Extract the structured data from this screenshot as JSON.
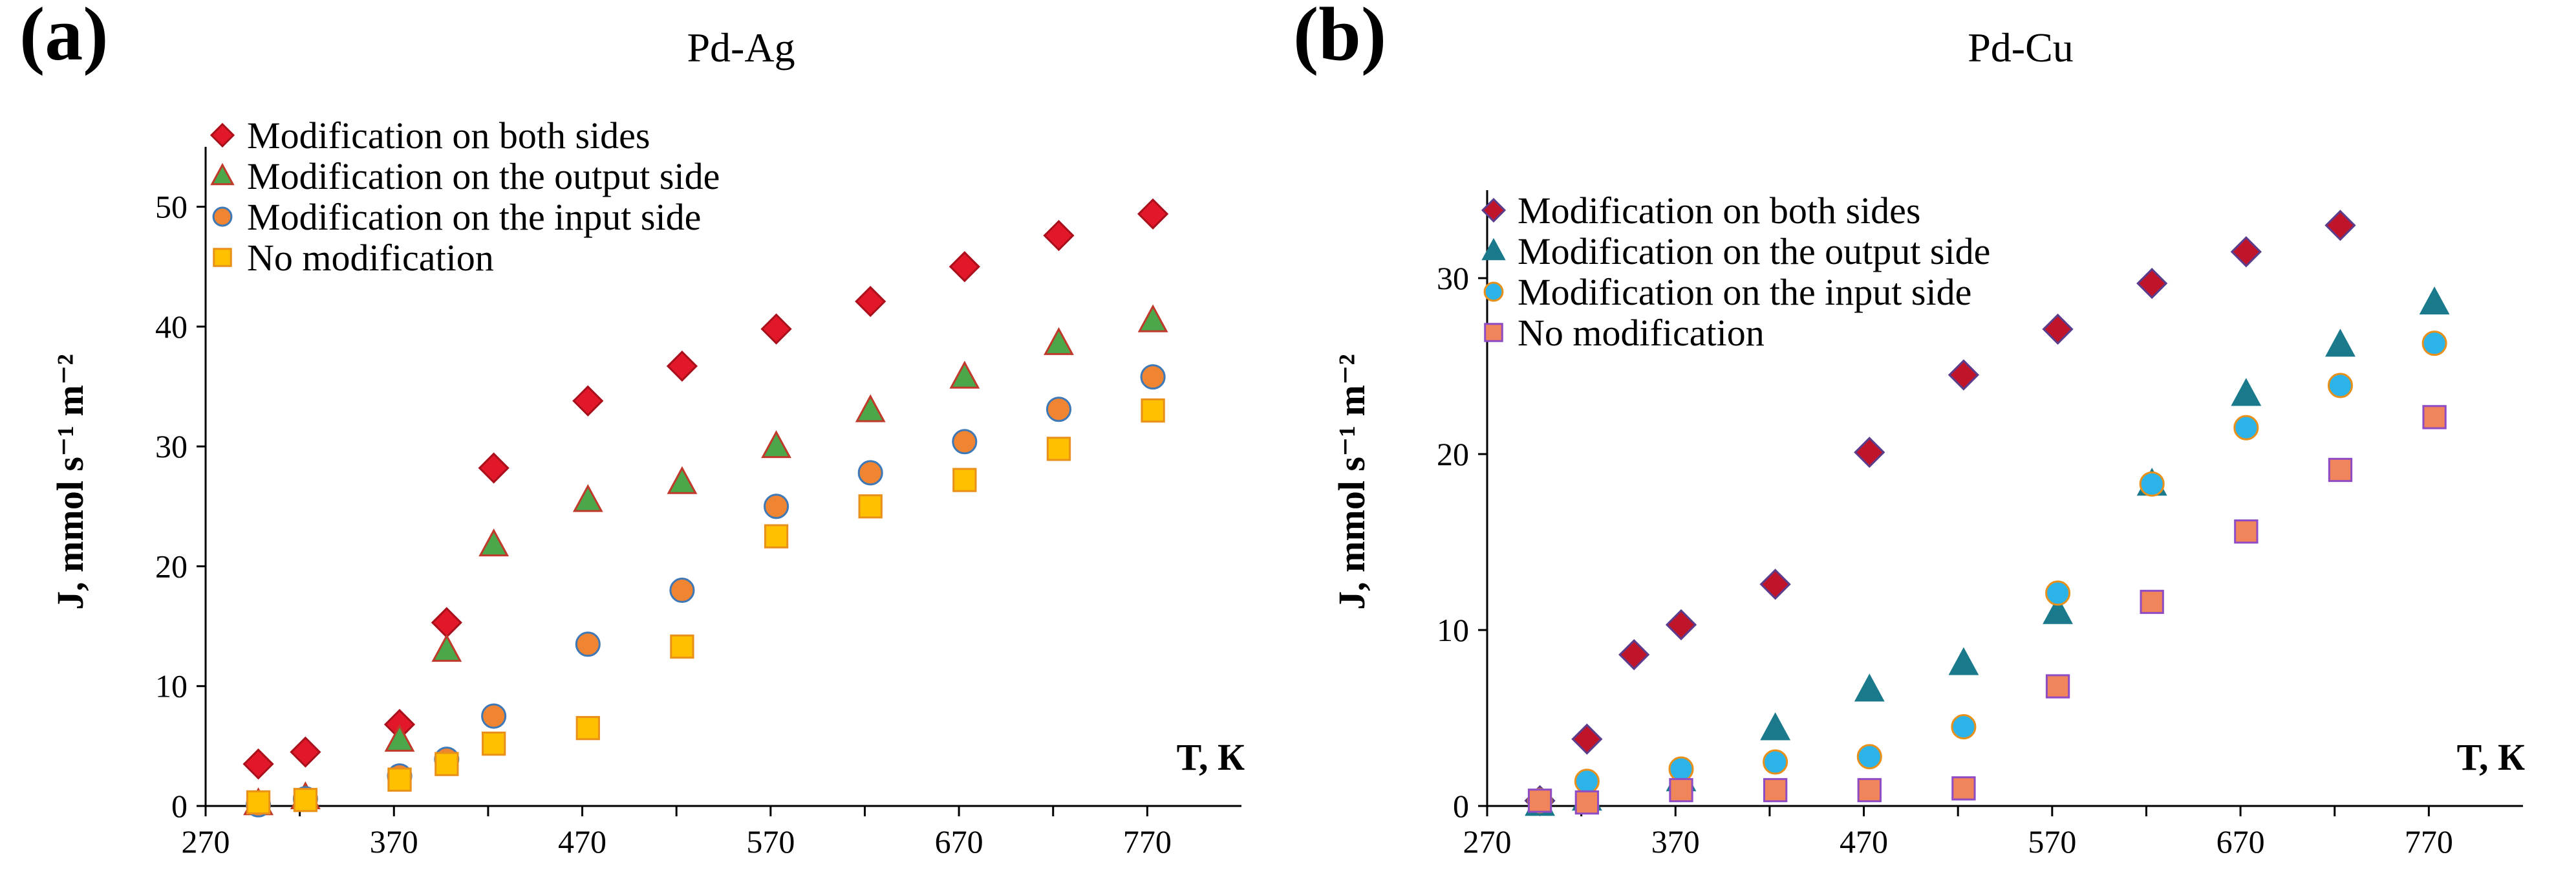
{
  "chart_data": [
    {
      "type": "scatter",
      "panel_label": "(a)",
      "title": "Pd-Ag",
      "xlabel": "T, К",
      "ylabel": "J, mmol s⁻¹ m⁻²",
      "xlim": [
        270,
        820
      ],
      "ylim": [
        0,
        55
      ],
      "x_ticks": [
        270,
        370,
        470,
        570,
        670,
        770
      ],
      "y_ticks": [
        0,
        10,
        20,
        30,
        40,
        50
      ],
      "grid": false,
      "legend_position": "top-left",
      "series": [
        {
          "name": "Modification on both sides",
          "marker": "diamond",
          "color": "#e3172a",
          "edge": "#a8101c",
          "points": [
            [
              298,
              3.5
            ],
            [
              323,
              4.5
            ],
            [
              373,
              6.8
            ],
            [
              398,
              15.3
            ],
            [
              423,
              28.2
            ],
            [
              473,
              33.8
            ],
            [
              523,
              36.7
            ],
            [
              573,
              39.8
            ],
            [
              623,
              42.1
            ],
            [
              673,
              45.0
            ],
            [
              723,
              47.6
            ],
            [
              773,
              49.4
            ]
          ]
        },
        {
          "name": "Modification on the output side",
          "marker": "triangle",
          "color": "#4ca64a",
          "edge": "#c0392b",
          "points": [
            [
              298,
              0.2
            ],
            [
              323,
              0.7
            ],
            [
              373,
              5.5
            ],
            [
              398,
              13.0
            ],
            [
              423,
              21.8
            ],
            [
              473,
              25.5
            ],
            [
              523,
              27.0
            ],
            [
              573,
              30.0
            ],
            [
              623,
              33.0
            ],
            [
              673,
              35.8
            ],
            [
              723,
              38.6
            ],
            [
              773,
              40.5
            ]
          ]
        },
        {
          "name": "Modification on the input side",
          "marker": "circle",
          "color": "#ef8432",
          "edge": "#3d78b8",
          "points": [
            [
              298,
              0.1
            ],
            [
              323,
              0.6
            ],
            [
              373,
              2.5
            ],
            [
              398,
              3.9
            ],
            [
              423,
              7.5
            ],
            [
              473,
              13.5
            ],
            [
              523,
              18.0
            ],
            [
              573,
              25.0
            ],
            [
              623,
              27.8
            ],
            [
              673,
              30.4
            ],
            [
              723,
              33.1
            ],
            [
              773,
              35.8
            ]
          ]
        },
        {
          "name": "No modification",
          "marker": "square",
          "color": "#ffc000",
          "edge": "#e8901a",
          "points": [
            [
              298,
              0.3
            ],
            [
              323,
              0.5
            ],
            [
              373,
              2.2
            ],
            [
              398,
              3.5
            ],
            [
              423,
              5.2
            ],
            [
              473,
              6.5
            ],
            [
              523,
              13.3
            ],
            [
              573,
              22.5
            ],
            [
              623,
              25.0
            ],
            [
              673,
              27.2
            ],
            [
              723,
              29.8
            ],
            [
              773,
              33.0
            ]
          ]
        }
      ]
    },
    {
      "type": "scatter",
      "panel_label": "(b)",
      "title": "Pd-Cu",
      "xlabel": "T, К",
      "ylabel": "J, mmol s⁻¹ m⁻²",
      "xlim": [
        270,
        820
      ],
      "ylim": [
        0,
        35
      ],
      "x_ticks": [
        270,
        370,
        470,
        570,
        670,
        770
      ],
      "y_ticks": [
        0,
        10,
        20,
        30
      ],
      "grid": false,
      "legend_position": "top-left",
      "series": [
        {
          "name": "Modification on both sides",
          "marker": "diamond",
          "color": "#c0142a",
          "edge": "#5a3d8c",
          "points": [
            [
              298,
              0.3
            ],
            [
              323,
              3.8
            ],
            [
              348,
              8.6
            ],
            [
              373,
              10.3
            ],
            [
              423,
              12.6
            ],
            [
              473,
              20.1
            ],
            [
              523,
              24.5
            ],
            [
              573,
              27.1
            ],
            [
              623,
              29.7
            ],
            [
              673,
              31.5
            ],
            [
              723,
              33.0
            ]
          ]
        },
        {
          "name": "Modification on the output side",
          "marker": "triangle",
          "color": "#1a7a8c",
          "edge": "#1a7a8c",
          "points": [
            [
              298,
              0.1
            ],
            [
              323,
              0.4
            ],
            [
              373,
              1.5
            ],
            [
              423,
              4.4
            ],
            [
              473,
              6.6
            ],
            [
              523,
              8.1
            ],
            [
              573,
              11.0
            ],
            [
              623,
              18.3
            ],
            [
              673,
              23.4
            ],
            [
              723,
              26.2
            ],
            [
              773,
              28.6
            ]
          ]
        },
        {
          "name": "Modification on the input side",
          "marker": "circle",
          "color": "#2cb3e8",
          "edge": "#e8901a",
          "points": [
            [
              298,
              0.3
            ],
            [
              323,
              1.4
            ],
            [
              373,
              2.1
            ],
            [
              423,
              2.5
            ],
            [
              473,
              2.8
            ],
            [
              523,
              4.5
            ],
            [
              573,
              12.1
            ],
            [
              623,
              18.3
            ],
            [
              673,
              21.5
            ],
            [
              723,
              23.9
            ],
            [
              773,
              26.3
            ]
          ]
        },
        {
          "name": "No modification",
          "marker": "square",
          "color": "#f0845a",
          "edge": "#8e4bc4",
          "points": [
            [
              298,
              0.3
            ],
            [
              323,
              0.2
            ],
            [
              373,
              0.9
            ],
            [
              423,
              0.9
            ],
            [
              473,
              0.9
            ],
            [
              523,
              1.0
            ],
            [
              573,
              6.8
            ],
            [
              623,
              11.6
            ],
            [
              673,
              15.6
            ],
            [
              723,
              19.1
            ],
            [
              773,
              22.1
            ]
          ]
        }
      ]
    }
  ]
}
